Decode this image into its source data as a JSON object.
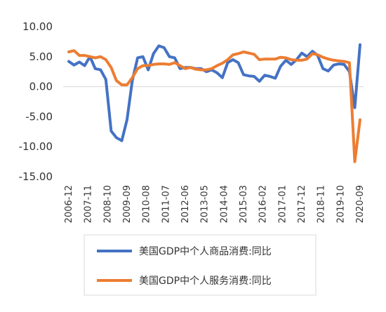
{
  "chart_data": {
    "type": "line",
    "title": "",
    "xlabel": "",
    "ylabel": "",
    "ylim": [
      -15,
      10
    ],
    "yticks": [
      10,
      5,
      0,
      -5,
      -10,
      -15
    ],
    "ytick_labels": [
      "10.00",
      "5.00",
      "0.00",
      "-5.00",
      "-10.00",
      "-15.00"
    ],
    "grid": false,
    "legend_position": "bottom",
    "x_tick_labels": [
      "2006-12",
      "2007-11",
      "2008-10",
      "2009-09",
      "2010-08",
      "2011-07",
      "2012-06",
      "2013-05",
      "2014-04",
      "2015-03",
      "2016-02",
      "2017-01",
      "2017-12",
      "2018-11",
      "2019-10",
      "2020-09"
    ],
    "x": [
      "2006-12",
      "2007-03",
      "2007-06",
      "2007-09",
      "2007-12",
      "2008-03",
      "2008-06",
      "2008-09",
      "2008-12",
      "2009-03",
      "2009-06",
      "2009-09",
      "2009-12",
      "2010-03",
      "2010-06",
      "2010-09",
      "2010-12",
      "2011-03",
      "2011-06",
      "2011-09",
      "2011-12",
      "2012-03",
      "2012-06",
      "2012-09",
      "2012-12",
      "2013-03",
      "2013-06",
      "2013-09",
      "2013-12",
      "2014-03",
      "2014-06",
      "2014-09",
      "2014-12",
      "2015-03",
      "2015-06",
      "2015-09",
      "2015-12",
      "2016-03",
      "2016-06",
      "2016-09",
      "2016-12",
      "2017-03",
      "2017-06",
      "2017-09",
      "2017-12",
      "2018-03",
      "2018-06",
      "2018-09",
      "2018-12",
      "2019-03",
      "2019-06",
      "2019-09",
      "2019-12",
      "2020-03",
      "2020-06",
      "2020-09"
    ],
    "series": [
      {
        "name": "美国GDP中个人商品消费:同比",
        "color": "#4472C4",
        "values": [
          4.2,
          3.6,
          4.1,
          3.5,
          5.0,
          3.0,
          2.8,
          1.2,
          -7.4,
          -8.5,
          -9.0,
          -5.5,
          1.0,
          4.8,
          5.0,
          2.8,
          5.5,
          6.8,
          6.5,
          5.0,
          4.8,
          3.0,
          3.2,
          3.2,
          3.0,
          3.0,
          2.5,
          2.8,
          2.3,
          1.5,
          4.0,
          4.5,
          4.0,
          2.0,
          1.8,
          1.7,
          0.9,
          1.9,
          1.7,
          1.4,
          3.4,
          4.4,
          3.7,
          4.5,
          5.6,
          5.0,
          5.9,
          5.2,
          3.0,
          2.6,
          3.6,
          3.8,
          3.7,
          2.5,
          -3.5,
          7.0
        ]
      },
      {
        "name": "美国GDP中个人服务消费:同比",
        "color": "#ED7D31",
        "values": [
          5.8,
          6.0,
          5.2,
          5.2,
          5.0,
          4.8,
          5.0,
          4.5,
          3.2,
          1.0,
          0.3,
          0.3,
          1.5,
          3.0,
          3.5,
          3.5,
          3.7,
          3.8,
          3.8,
          3.7,
          4.0,
          3.5,
          3.0,
          3.2,
          2.9,
          2.8,
          2.8,
          3.0,
          3.5,
          3.9,
          4.5,
          5.3,
          5.5,
          5.8,
          5.6,
          5.4,
          4.5,
          4.6,
          4.6,
          4.6,
          4.9,
          4.8,
          4.5,
          4.4,
          4.4,
          4.6,
          5.5,
          5.3,
          4.9,
          4.6,
          4.4,
          4.3,
          4.2,
          4.0,
          -12.5,
          -5.5
        ]
      }
    ]
  }
}
